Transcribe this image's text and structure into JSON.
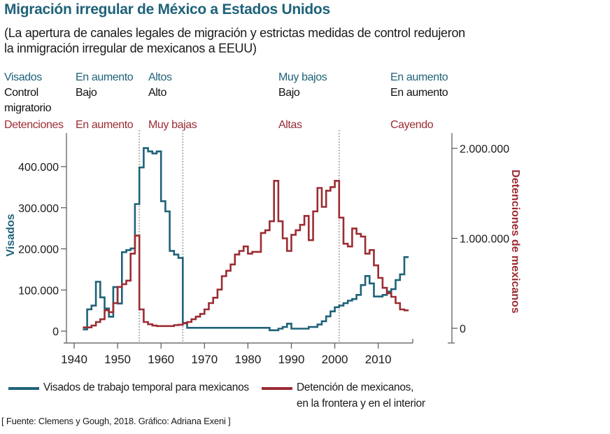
{
  "header": {
    "title": "Migración irregular de México a Estados Unidos",
    "subtitle": "(La apertura de canales legales de migración y estrictas medidas de control redujeron la inmigración irregular de mexicanos a EEUU)"
  },
  "periods": {
    "row_labels": {
      "visas": "Visados",
      "control": "Control migratorio",
      "detentions": "Detenciones"
    },
    "columns": [
      {
        "visas": "En aumento",
        "control": "Bajo",
        "detentions": "En aumento"
      },
      {
        "visas": "Altos",
        "control": "Alto",
        "detentions": "Muy bajas"
      },
      {
        "visas": "Muy bajos",
        "control": "Bajo",
        "detentions": "Altas"
      },
      {
        "visas": "En aumento",
        "control": "En aumento",
        "detentions": "Cayendo"
      }
    ]
  },
  "colors": {
    "visas": "#1f6279",
    "detentions": "#9b2c33",
    "divider": "#b5b5b5"
  },
  "legend": {
    "visas": "Visados de trabajo temporal para mexicanos",
    "detentions_line1": "Detención de mexicanos,",
    "detentions_line2": "en la frontera y en el interior"
  },
  "source": "[ Fuente: Clemens y Gough, 2018. Gráfico: Adriana Exeni ]",
  "chart_data": {
    "type": "line",
    "step": true,
    "title": "Migración irregular de México a Estados Unidos",
    "xlabel": "",
    "x_ticks": [
      1940,
      1950,
      1960,
      1970,
      1980,
      1990,
      2000,
      2010
    ],
    "xlim": [
      1938,
      2018
    ],
    "dividers": [
      1955,
      1965,
      2001
    ],
    "left_axis": {
      "label": "Visados",
      "ticks": [
        0,
        100000,
        200000,
        300000,
        400000
      ],
      "tick_labels": [
        "0",
        "100.000",
        "200.000",
        "300.000",
        "400.000"
      ],
      "ylim": [
        0,
        450000
      ]
    },
    "right_axis": {
      "label": "Detenciones de mexicanos",
      "ticks": [
        0,
        1000000,
        2000000
      ],
      "tick_labels": [
        "0",
        "1.000.000",
        "2.000.000"
      ],
      "ylim": [
        0,
        2000000
      ]
    },
    "series": [
      {
        "name": "Visados de trabajo temporal para mexicanos",
        "axis": "left",
        "x": [
          1942,
          1943,
          1944,
          1945,
          1946,
          1947,
          1948,
          1949,
          1950,
          1951,
          1952,
          1953,
          1954,
          1955,
          1956,
          1957,
          1958,
          1959,
          1960,
          1961,
          1962,
          1963,
          1964,
          1965,
          1966,
          1967,
          1968,
          1969,
          1970,
          1971,
          1972,
          1973,
          1974,
          1975,
          1976,
          1977,
          1978,
          1979,
          1980,
          1981,
          1982,
          1983,
          1984,
          1985,
          1986,
          1987,
          1988,
          1989,
          1990,
          1991,
          1992,
          1993,
          1994,
          1995,
          1996,
          1997,
          1998,
          1999,
          2000,
          2001,
          2002,
          2003,
          2004,
          2005,
          2006,
          2007,
          2008,
          2009,
          2010,
          2011,
          2012,
          2013,
          2014,
          2015,
          2016
        ],
        "values": [
          4000,
          53000,
          62000,
          120000,
          82000,
          55000,
          35000,
          107000,
          67000,
          192000,
          197000,
          201000,
          309000,
          398000,
          445000,
          437000,
          432000,
          437000,
          316000,
          291000,
          195000,
          186000,
          178000,
          20000,
          8000,
          8000,
          8000,
          8000,
          8000,
          8000,
          8000,
          8000,
          8000,
          8000,
          8000,
          8000,
          8000,
          8000,
          8000,
          8000,
          8000,
          8000,
          8000,
          2000,
          2000,
          6000,
          10000,
          18000,
          6000,
          6000,
          6000,
          6000,
          10000,
          10000,
          16000,
          24000,
          36000,
          48000,
          58000,
          62000,
          68000,
          74000,
          78000,
          88000,
          112000,
          134000,
          116000,
          84000,
          84000,
          88000,
          96000,
          102000,
          124000,
          138000,
          180000
        ]
      },
      {
        "name": "Detención de mexicanos, en la frontera y en el interior",
        "axis": "right",
        "x": [
          1942,
          1943,
          1944,
          1945,
          1946,
          1947,
          1948,
          1949,
          1950,
          1951,
          1952,
          1953,
          1954,
          1955,
          1956,
          1957,
          1958,
          1959,
          1960,
          1961,
          1962,
          1963,
          1964,
          1965,
          1966,
          1967,
          1968,
          1969,
          1970,
          1971,
          1972,
          1973,
          1974,
          1975,
          1976,
          1977,
          1978,
          1979,
          1980,
          1981,
          1982,
          1983,
          1984,
          1985,
          1986,
          1987,
          1988,
          1989,
          1990,
          1991,
          1992,
          1993,
          1994,
          1995,
          1996,
          1997,
          1998,
          1999,
          2000,
          2001,
          2002,
          2003,
          2004,
          2005,
          2006,
          2007,
          2008,
          2009,
          2010,
          2011,
          2012,
          2013,
          2014,
          2015,
          2016
        ],
        "values": [
          10000,
          10000,
          30000,
          70000,
          100000,
          200000,
          180000,
          280000,
          460000,
          490000,
          530000,
          830000,
          1030000,
          210000,
          70000,
          45000,
          30000,
          25000,
          25000,
          25000,
          25000,
          35000,
          40000,
          55000,
          70000,
          100000,
          130000,
          160000,
          210000,
          280000,
          340000,
          430000,
          580000,
          640000,
          710000,
          820000,
          860000,
          910000,
          830000,
          850000,
          850000,
          1060000,
          1090000,
          1190000,
          1640000,
          1190000,
          1000000,
          860000,
          1040000,
          1090000,
          1150000,
          1250000,
          980000,
          1300000,
          1560000,
          1350000,
          1530000,
          1570000,
          1640000,
          1230000,
          940000,
          910000,
          1110000,
          1050000,
          1020000,
          830000,
          870000,
          700000,
          560000,
          450000,
          390000,
          350000,
          280000,
          210000,
          200000
        ]
      }
    ]
  }
}
